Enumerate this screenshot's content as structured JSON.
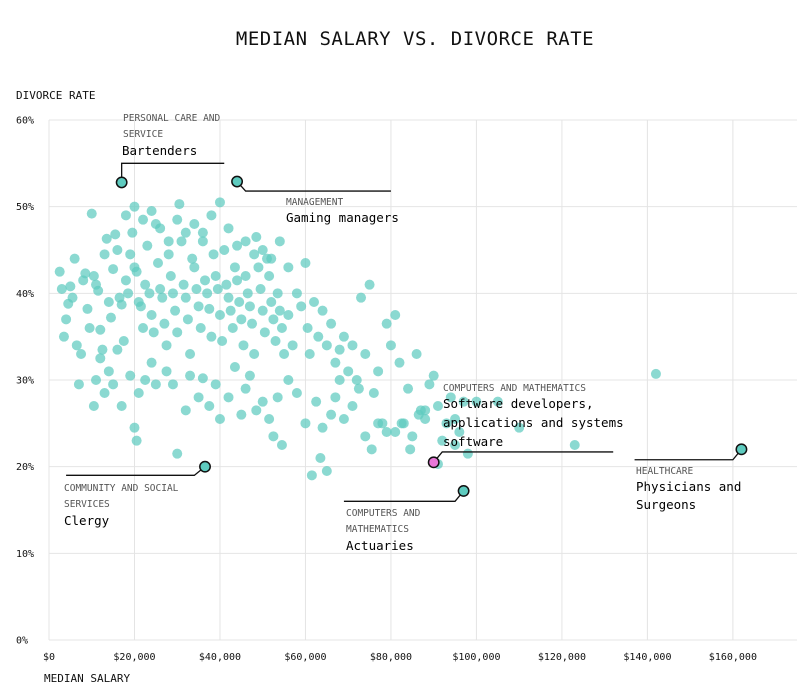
{
  "chart_data": {
    "type": "scatter",
    "title": "MEDIAN SALARY VS. DIVORCE RATE",
    "xlabel": "MEDIAN SALARY",
    "ylabel": "DIVORCE RATE",
    "xlim": [
      0,
      175000
    ],
    "ylim": [
      0,
      60
    ],
    "x_ticks": [
      0,
      20000,
      40000,
      60000,
      80000,
      100000,
      120000,
      140000,
      160000
    ],
    "x_tick_labels": [
      "$0",
      "$20,000",
      "$40,000",
      "$60,000",
      "$80,000",
      "$100,000",
      "$120,000",
      "$140,000",
      "$160,000"
    ],
    "y_ticks": [
      0,
      10,
      20,
      30,
      40,
      50,
      60
    ],
    "y_tick_labels": [
      "0%",
      "10%",
      "20%",
      "30%",
      "40%",
      "50%",
      "60%"
    ],
    "grid": true,
    "point_color": "#5ecbbf",
    "highlight_color": "#e777d8",
    "points": [
      [
        2500,
        42.5
      ],
      [
        3000,
        40.5
      ],
      [
        3500,
        35
      ],
      [
        4000,
        37
      ],
      [
        4500,
        38.8
      ],
      [
        5000,
        40.8
      ],
      [
        5500,
        39.5
      ],
      [
        6000,
        44
      ],
      [
        6500,
        34
      ],
      [
        7000,
        29.5
      ],
      [
        7500,
        33
      ],
      [
        8000,
        41.5
      ],
      [
        8500,
        42.3
      ],
      [
        9000,
        38.2
      ],
      [
        9500,
        36
      ],
      [
        10000,
        49.2
      ],
      [
        10500,
        42
      ],
      [
        11000,
        41
      ],
      [
        11500,
        40.3
      ],
      [
        12000,
        35.8
      ],
      [
        12500,
        33.5
      ],
      [
        13000,
        44.5
      ],
      [
        13500,
        46.3
      ],
      [
        14000,
        39
      ],
      [
        14500,
        37.2
      ],
      [
        15000,
        42.8
      ],
      [
        15500,
        46.8
      ],
      [
        16000,
        45
      ],
      [
        16500,
        39.5
      ],
      [
        17000,
        38.7
      ],
      [
        17500,
        34.5
      ],
      [
        18000,
        41.5
      ],
      [
        18500,
        40
      ],
      [
        19000,
        44.5
      ],
      [
        19500,
        47
      ],
      [
        20000,
        43
      ],
      [
        20500,
        42.5
      ],
      [
        21000,
        39
      ],
      [
        21500,
        38.5
      ],
      [
        22000,
        36
      ],
      [
        22500,
        41
      ],
      [
        23000,
        45.5
      ],
      [
        23500,
        40
      ],
      [
        24000,
        37.5
      ],
      [
        24500,
        35.5
      ],
      [
        25000,
        48
      ],
      [
        25500,
        43.5
      ],
      [
        26000,
        40.5
      ],
      [
        26500,
        39.5
      ],
      [
        27000,
        36.5
      ],
      [
        27500,
        34
      ],
      [
        28000,
        44.5
      ],
      [
        28500,
        42
      ],
      [
        29000,
        40
      ],
      [
        29500,
        38
      ],
      [
        30000,
        35.5
      ],
      [
        30500,
        50.3
      ],
      [
        31000,
        46
      ],
      [
        31500,
        41
      ],
      [
        32000,
        39.5
      ],
      [
        32500,
        37
      ],
      [
        33000,
        33
      ],
      [
        33500,
        44
      ],
      [
        34000,
        43
      ],
      [
        34500,
        40.5
      ],
      [
        35000,
        38.5
      ],
      [
        35500,
        36
      ],
      [
        36000,
        47
      ],
      [
        36500,
        41.5
      ],
      [
        37000,
        40
      ],
      [
        37500,
        38.2
      ],
      [
        38000,
        35
      ],
      [
        38500,
        44.5
      ],
      [
        39000,
        42
      ],
      [
        39500,
        40.5
      ],
      [
        40000,
        37.5
      ],
      [
        40500,
        34.5
      ],
      [
        41000,
        45
      ],
      [
        41500,
        41
      ],
      [
        42000,
        39.5
      ],
      [
        42500,
        38
      ],
      [
        43000,
        36
      ],
      [
        43500,
        43
      ],
      [
        44000,
        41.5
      ],
      [
        44500,
        39
      ],
      [
        45000,
        37
      ],
      [
        45500,
        34
      ],
      [
        46000,
        42
      ],
      [
        46500,
        40
      ],
      [
        47000,
        38.5
      ],
      [
        47500,
        36.5
      ],
      [
        48000,
        33
      ],
      [
        48500,
        46.5
      ],
      [
        49000,
        43
      ],
      [
        49500,
        40.5
      ],
      [
        50000,
        38
      ],
      [
        50500,
        35.5
      ],
      [
        51000,
        44
      ],
      [
        51500,
        42
      ],
      [
        52000,
        39
      ],
      [
        52500,
        37
      ],
      [
        53000,
        34.5
      ],
      [
        53500,
        40
      ],
      [
        54000,
        38
      ],
      [
        54500,
        36
      ],
      [
        55000,
        33
      ],
      [
        56000,
        37.5
      ],
      [
        57000,
        34
      ],
      [
        58000,
        40
      ],
      [
        59000,
        38.5
      ],
      [
        60000,
        43.5
      ],
      [
        60500,
        36
      ],
      [
        61000,
        33
      ],
      [
        62000,
        39
      ],
      [
        63000,
        35
      ],
      [
        64000,
        38
      ],
      [
        65000,
        34
      ],
      [
        66000,
        36.5
      ],
      [
        67000,
        32
      ],
      [
        68000,
        33.5
      ],
      [
        69000,
        35
      ],
      [
        70000,
        31
      ],
      [
        71000,
        34
      ],
      [
        72000,
        30
      ],
      [
        73000,
        39.5
      ],
      [
        74000,
        33
      ],
      [
        75000,
        41
      ],
      [
        76000,
        28.5
      ],
      [
        77000,
        31
      ],
      [
        78000,
        25
      ],
      [
        79000,
        36.5
      ],
      [
        80000,
        34
      ],
      [
        81000,
        37.5
      ],
      [
        82000,
        32
      ],
      [
        83000,
        25
      ],
      [
        84000,
        29
      ],
      [
        85000,
        23.5
      ],
      [
        86000,
        33
      ],
      [
        87000,
        26.5
      ],
      [
        88000,
        25.5
      ],
      [
        89000,
        29.5
      ],
      [
        90000,
        30.5
      ],
      [
        91000,
        27
      ],
      [
        92000,
        23
      ],
      [
        93000,
        25
      ],
      [
        94000,
        28
      ],
      [
        95000,
        25.5
      ],
      [
        96000,
        24
      ],
      [
        97000,
        27.5
      ],
      [
        100000,
        27.5
      ],
      [
        105000,
        27.5
      ],
      [
        110000,
        24.5
      ],
      [
        123000,
        22.5
      ],
      [
        142000,
        30.7
      ],
      [
        10500,
        27
      ],
      [
        11000,
        30
      ],
      [
        12000,
        32.5
      ],
      [
        13000,
        28.5
      ],
      [
        14000,
        31
      ],
      [
        15000,
        29.5
      ],
      [
        16000,
        33.5
      ],
      [
        17000,
        27
      ],
      [
        19000,
        30.5
      ],
      [
        20000,
        24.5
      ],
      [
        20500,
        23
      ],
      [
        21000,
        28.5
      ],
      [
        22500,
        30
      ],
      [
        24000,
        32
      ],
      [
        25000,
        29.5
      ],
      [
        27500,
        31
      ],
      [
        29000,
        29.5
      ],
      [
        30000,
        21.5
      ],
      [
        32000,
        26.5
      ],
      [
        33000,
        30.5
      ],
      [
        35000,
        28
      ],
      [
        36000,
        30.2
      ],
      [
        37500,
        27
      ],
      [
        39000,
        29.5
      ],
      [
        40000,
        25.5
      ],
      [
        42000,
        28
      ],
      [
        43500,
        31.5
      ],
      [
        45000,
        26
      ],
      [
        46000,
        29
      ],
      [
        47000,
        30.5
      ],
      [
        48500,
        26.5
      ],
      [
        50000,
        27.5
      ],
      [
        51500,
        25.5
      ],
      [
        52500,
        23.5
      ],
      [
        53500,
        28
      ],
      [
        54500,
        22.5
      ],
      [
        56000,
        30
      ],
      [
        58000,
        28.5
      ],
      [
        60000,
        25
      ],
      [
        61500,
        19
      ],
      [
        62500,
        27.5
      ],
      [
        63500,
        21
      ],
      [
        64000,
        24.5
      ],
      [
        65000,
        19.5
      ],
      [
        66000,
        26
      ],
      [
        67000,
        28
      ],
      [
        68000,
        30
      ],
      [
        69000,
        25.5
      ],
      [
        71000,
        27
      ],
      [
        72500,
        29
      ],
      [
        74000,
        23.5
      ],
      [
        75500,
        22
      ],
      [
        77000,
        25
      ],
      [
        79000,
        24
      ],
      [
        81000,
        24
      ],
      [
        82500,
        25
      ],
      [
        84500,
        22
      ],
      [
        86500,
        26
      ],
      [
        88000,
        26.5
      ],
      [
        91000,
        20.3
      ],
      [
        95000,
        22.5
      ],
      [
        98000,
        21.5
      ],
      [
        18000,
        49
      ],
      [
        20000,
        50
      ],
      [
        22000,
        48.5
      ],
      [
        24000,
        49.5
      ],
      [
        26000,
        47.5
      ],
      [
        28000,
        46
      ],
      [
        30000,
        48.5
      ],
      [
        32000,
        47
      ],
      [
        34000,
        48
      ],
      [
        36000,
        46
      ],
      [
        38000,
        49
      ],
      [
        40000,
        50.5
      ],
      [
        42000,
        47.5
      ],
      [
        44000,
        45.5
      ],
      [
        46000,
        46
      ],
      [
        48000,
        44.5
      ],
      [
        50000,
        45
      ],
      [
        52000,
        44
      ],
      [
        54000,
        46
      ],
      [
        56000,
        43
      ]
    ],
    "annotated_points": [
      {
        "category": "PERSONAL CARE AND SERVICE",
        "label": "Bartenders",
        "x": 17000,
        "y": 52.8,
        "highlight": false
      },
      {
        "category": "MANAGEMENT",
        "label": "Gaming managers",
        "x": 44000,
        "y": 52.9,
        "highlight": false
      },
      {
        "category": "COMPUTERS AND MATHEMATICS",
        "label": "Software developers, applications and systems software",
        "x": 90000,
        "y": 20.5,
        "highlight": true
      },
      {
        "category": "HEALTHCARE",
        "label": "Physicians and Surgeons",
        "x": 162000,
        "y": 22,
        "highlight": false
      },
      {
        "category": "COMMUNITY AND SOCIAL SERVICES",
        "label": "Clergy",
        "x": 36500,
        "y": 20,
        "highlight": false
      },
      {
        "category": "COMPUTERS AND MATHEMATICS",
        "label": "Actuaries",
        "x": 97000,
        "y": 17.2,
        "highlight": false
      }
    ]
  }
}
